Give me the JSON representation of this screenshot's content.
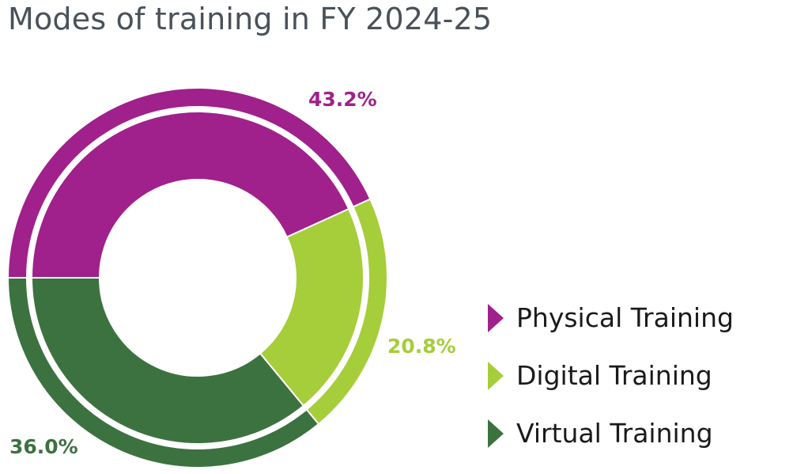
{
  "chart_data": {
    "type": "pie",
    "title": "Modes of training in FY 2024-25",
    "slices": [
      {
        "label": "Physical Training",
        "value": 43.2,
        "value_label": "43.2%",
        "color": "#a0208c"
      },
      {
        "label": "Digital Training",
        "value": 20.8,
        "value_label": "20.8%",
        "color": "#a6cd3a"
      },
      {
        "label": "Virtual Training",
        "value": 36.0,
        "value_label": "36.0%",
        "color": "#3c7240"
      }
    ],
    "legend_placement": "bottom-right",
    "donut": true
  }
}
